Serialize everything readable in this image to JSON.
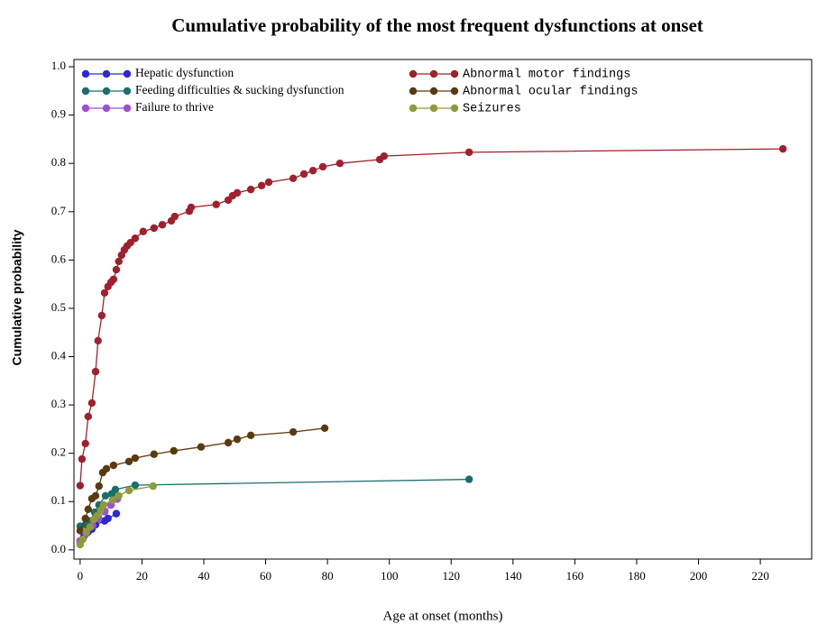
{
  "chart_data": {
    "type": "line",
    "title": "Cumulative probability of the most frequent dysfunctions at onset",
    "x_label": "Age at onset  (months)",
    "y_label": "Cumulative probability",
    "xlim": [
      -2,
      236.6
    ],
    "ylim": [
      -0.019,
      1.015
    ],
    "xticks": [
      0,
      20,
      40,
      60,
      80,
      100,
      120,
      140,
      160,
      180,
      200,
      220
    ],
    "yticks": [
      {
        "value": 0,
        "label": "0.0"
      },
      0.1,
      0.2,
      0.3,
      0.4,
      0.5,
      0.6,
      0.7,
      0.8,
      0.9,
      {
        "value": 1,
        "label": "1.0"
      }
    ],
    "series": [
      {
        "name": "Hepatic dysfunction",
        "color": "#2a2ad0",
        "x": [
          0,
          1.2,
          2.6,
          3.8,
          5,
          7.9,
          9,
          11.7
        ],
        "values": [
          0.017,
          0.028,
          0.037,
          0.043,
          0.052,
          0.06,
          0.065,
          0.075
        ]
      },
      {
        "name": "Feeding difficulties & sucking dysfunction",
        "color": "#1a6e6e",
        "x": [
          0,
          1.7,
          3.2,
          4.7,
          6.1,
          8.2,
          10.2,
          11.4,
          17.8,
          125.8
        ],
        "values": [
          0.049,
          0.052,
          0.06,
          0.078,
          0.093,
          0.112,
          0.116,
          0.125,
          0.134,
          0.146
        ]
      },
      {
        "name": "Failure to thrive",
        "color": "#a050d0",
        "x": [
          0,
          2,
          4,
          6,
          8,
          10,
          12
        ],
        "values": [
          0.019,
          0.034,
          0.05,
          0.065,
          0.079,
          0.093,
          0.105
        ]
      },
      {
        "name": "Abnormal motor findings",
        "color": "#a0202e",
        "x": [
          0,
          0.6,
          1.7,
          2.6,
          3.8,
          5,
          5.8,
          7,
          7.9,
          9,
          10,
          10.8,
          11.7,
          12.5,
          13.4,
          14.3,
          15.2,
          16.3,
          17.8,
          20.4,
          23.9,
          26.6,
          29.5,
          30.6,
          35.3,
          35.9,
          44,
          47.9,
          49.3,
          50.8,
          55.2,
          58.7,
          61,
          68.9,
          72.4,
          75.3,
          78.5,
          84,
          96.9,
          98.3,
          125.8,
          227.3
        ],
        "values": [
          0.133,
          0.188,
          0.22,
          0.276,
          0.304,
          0.369,
          0.433,
          0.485,
          0.532,
          0.545,
          0.554,
          0.56,
          0.58,
          0.597,
          0.61,
          0.621,
          0.629,
          0.636,
          0.645,
          0.659,
          0.666,
          0.673,
          0.681,
          0.69,
          0.701,
          0.709,
          0.715,
          0.724,
          0.733,
          0.739,
          0.746,
          0.754,
          0.761,
          0.769,
          0.778,
          0.785,
          0.793,
          0.8,
          0.808,
          0.815,
          0.823,
          0.83
        ]
      },
      {
        "name": "Abnormal ocular findings",
        "color": "#5a3a10",
        "x": [
          0,
          1.7,
          2.6,
          3.8,
          5,
          6.1,
          7.3,
          8.5,
          10.8,
          15.8,
          17.8,
          23.9,
          30.3,
          39.1,
          47.9,
          50.8,
          55.2,
          68.9,
          79.1
        ],
        "values": [
          0.04,
          0.065,
          0.084,
          0.106,
          0.112,
          0.132,
          0.16,
          0.168,
          0.175,
          0.183,
          0.19,
          0.198,
          0.205,
          0.213,
          0.222,
          0.229,
          0.237,
          0.244,
          0.252
        ]
      },
      {
        "name": "Seizures",
        "color": "#8f9a3a",
        "x": [
          0,
          0.9,
          2,
          3.2,
          4.4,
          5.5,
          6.7,
          7.6,
          10.5,
          12.5,
          15.8,
          23.6
        ],
        "values": [
          0.011,
          0.022,
          0.037,
          0.047,
          0.063,
          0.071,
          0.082,
          0.093,
          0.103,
          0.112,
          0.123,
          0.132
        ]
      }
    ]
  }
}
